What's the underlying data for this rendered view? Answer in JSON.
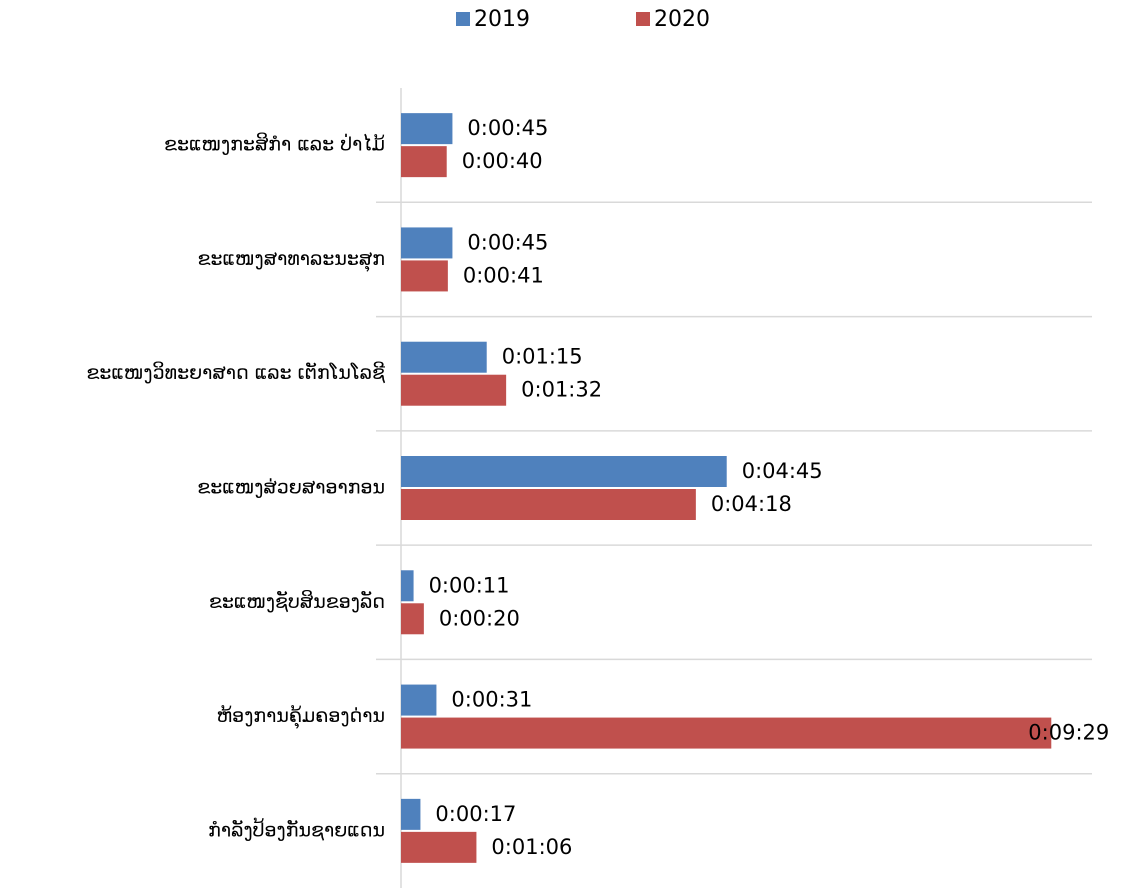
{
  "chart_data": {
    "type": "bar",
    "orientation": "horizontal",
    "categories": [
      "ຂະແໜງກະສິກຳ ແລະ ປ່າໄມ້",
      "ຂະແໜງສາທາລະນະສຸກ",
      "ຂະແໜງວິທະຍາສາດ ແລະ ເຕັກໂນໂລຊີ",
      "ຂະແໜງສ່ວຍສາອາກອນ",
      "ຂະແໜງຊັບສິນຂອງລັດ",
      "ຫ້ອງການຄຸ້ມຄອງດ່ານ",
      "ກຳລັງປ້ອງກັນຊາຍແດນ"
    ],
    "series": [
      {
        "name": "2019",
        "color": "#4f81bd",
        "values": [
          45,
          45,
          75,
          285,
          11,
          31,
          17
        ],
        "value_labels": [
          "0:00:45",
          "0:00:45",
          "0:01:15",
          "0:04:45",
          "0:00:11",
          "0:00:31",
          "0:00:17"
        ]
      },
      {
        "name": "2020",
        "color": "#c0504d",
        "values": [
          40,
          41,
          92,
          258,
          20,
          569,
          66
        ],
        "value_labels": [
          "0:00:40",
          "0:00:41",
          "0:01:32",
          "0:04:18",
          "0:00:20",
          "0:09:29",
          "0:01:06"
        ]
      }
    ],
    "xlim": [
      0,
      630
    ],
    "legend": "top"
  }
}
